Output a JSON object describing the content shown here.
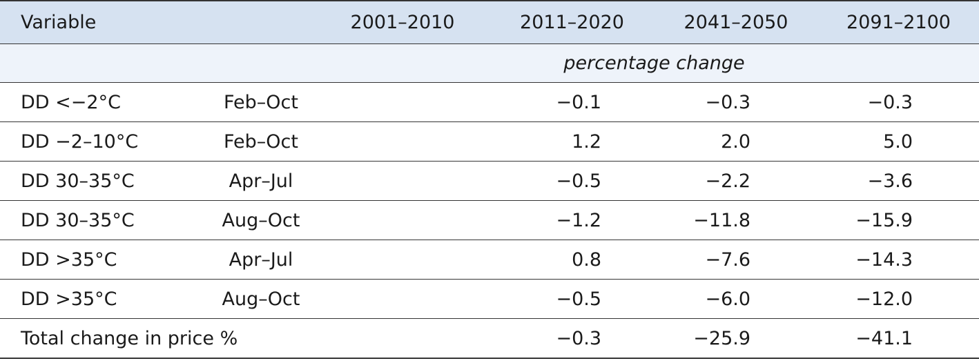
{
  "table": {
    "headers": {
      "variable": "Variable",
      "y2001": "2001–2010",
      "y2011": "2011–2020",
      "y2041": "2041–2050",
      "y2091": "2091–2100"
    },
    "unit_label": "percentage change",
    "rows": [
      {
        "variable": "DD <−2°C",
        "period": "Feb–Oct",
        "y2001": "",
        "y2011": "−0.1",
        "y2041": "−0.3",
        "y2091": "−0.3"
      },
      {
        "variable": "DD −2–10°C",
        "period": "Feb–Oct",
        "y2001": "",
        "y2011": "1.2",
        "y2041": "2.0",
        "y2091": "5.0"
      },
      {
        "variable": "DD 30–35°C",
        "period": "Apr–Jul",
        "y2001": "",
        "y2011": "−0.5",
        "y2041": "−2.2",
        "y2091": "−3.6"
      },
      {
        "variable": "DD 30–35°C",
        "period": "Aug–Oct",
        "y2001": "",
        "y2011": "−1.2",
        "y2041": "−11.8",
        "y2091": "−15.9"
      },
      {
        "variable": "DD >35°C",
        "period": "Apr–Jul",
        "y2001": "",
        "y2011": "0.8",
        "y2041": "−7.6",
        "y2091": "−14.3"
      },
      {
        "variable": "DD >35°C",
        "period": "Aug–Oct",
        "y2001": "",
        "y2011": "−0.5",
        "y2041": "−6.0",
        "y2091": "−12.0"
      },
      {
        "variable": "Total change in price %",
        "period": "",
        "y2001": "",
        "y2011": "−0.3",
        "y2041": "−25.9",
        "y2091": "−41.1"
      }
    ]
  }
}
